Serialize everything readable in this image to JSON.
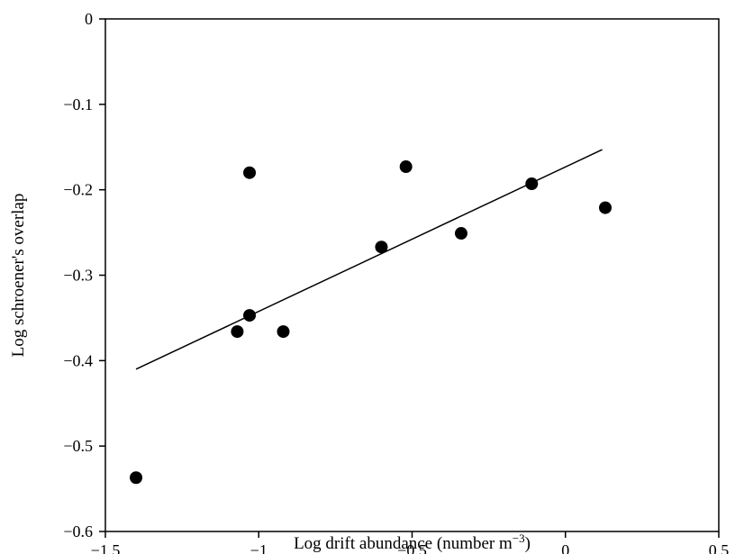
{
  "chart_data": {
    "type": "scatter",
    "title": "",
    "xlabel": "Log drift abundance (number m",
    "xlabel_sup": "−3",
    "xlabel_end": ")",
    "ylabel": "Log schroener's overlap",
    "xlim": [
      -1.5,
      0.5
    ],
    "ylim": [
      -0.6,
      0
    ],
    "xticks": [
      -1.5,
      -1,
      -0.5,
      0,
      0.5
    ],
    "xtick_labels": [
      "−1.5",
      "−1",
      "−0.5",
      "0",
      "0.5"
    ],
    "yticks": [
      0,
      -0.1,
      -0.2,
      -0.3,
      -0.4,
      -0.5,
      -0.6
    ],
    "ytick_labels": [
      "0",
      "−0.1",
      "−0.2",
      "−0.3",
      "−0.4",
      "−0.5",
      "−0.6"
    ],
    "grid": false,
    "points": [
      {
        "x": -1.4,
        "y": -0.537
      },
      {
        "x": -1.07,
        "y": -0.366
      },
      {
        "x": -1.03,
        "y": -0.347
      },
      {
        "x": -1.03,
        "y": -0.18
      },
      {
        "x": -0.92,
        "y": -0.366
      },
      {
        "x": -0.6,
        "y": -0.267
      },
      {
        "x": -0.52,
        "y": -0.173
      },
      {
        "x": -0.34,
        "y": -0.251
      },
      {
        "x": -0.11,
        "y": -0.193
      },
      {
        "x": 0.13,
        "y": -0.221
      }
    ],
    "trendline": {
      "x": [
        -1.4,
        0.12
      ],
      "y": [
        -0.41,
        -0.153
      ]
    },
    "colors": {
      "marker": "#000000",
      "line": "#000000",
      "axis": "#000000"
    }
  }
}
